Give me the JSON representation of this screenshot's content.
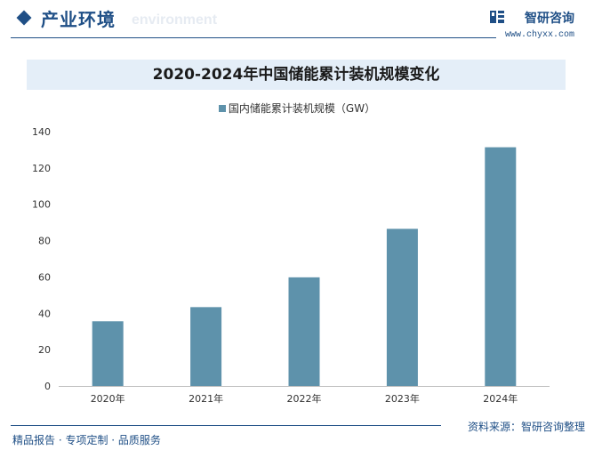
{
  "header": {
    "section_title": "产业环境",
    "section_title_en": "environment",
    "brand_name": "智研咨询",
    "brand_url": "www.chyxx.com"
  },
  "colors": {
    "accent": "#1f4f86",
    "bar": "#5e92ab",
    "title_band": "#e4eef8"
  },
  "chart_data": {
    "type": "bar",
    "title": "2020-2024年中国储能累计装机规模变化",
    "categories": [
      "2020年",
      "2021年",
      "2022年",
      "2023年",
      "2024年"
    ],
    "series": [
      {
        "name": "国内储能累计装机规模（GW）",
        "values": [
          35.6,
          43.4,
          59.8,
          86.5,
          131.4
        ]
      }
    ],
    "ylim": [
      0,
      140
    ],
    "yticks": [
      0,
      20,
      40,
      60,
      80,
      100,
      120,
      140
    ],
    "legend_position": "top-center",
    "grid": false
  },
  "footer": {
    "services": "精品报告 · 专项定制 · 品质服务",
    "source": "资料来源：智研咨询整理"
  }
}
